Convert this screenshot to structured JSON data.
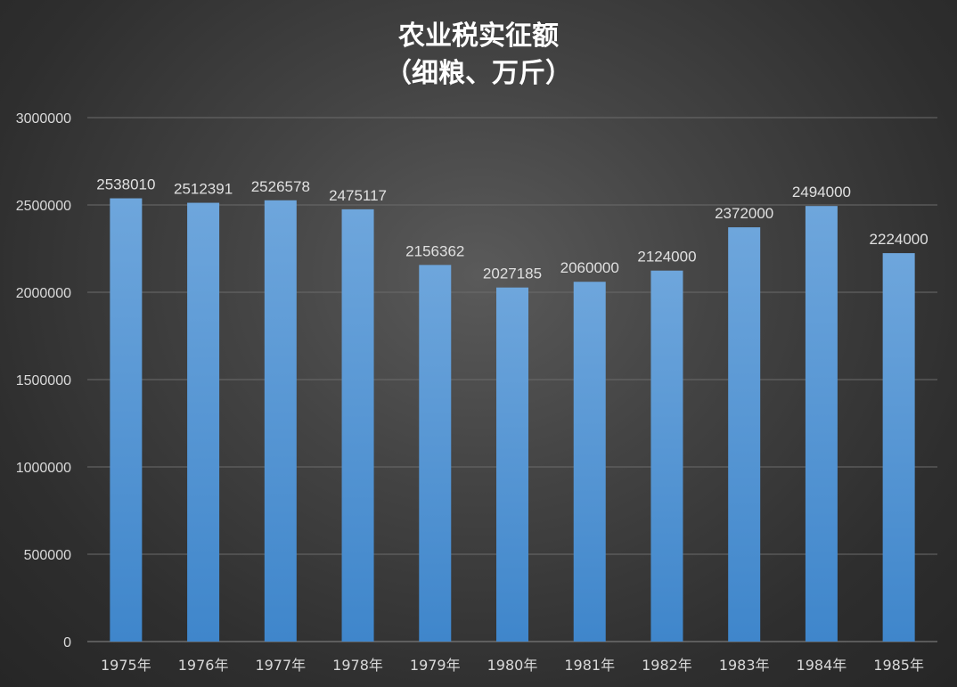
{
  "chart_data": {
    "type": "bar",
    "title": "农业税实征额",
    "subtitle": "（细粮、万斤）",
    "xlabel": "",
    "ylabel": "",
    "categories": [
      "1975年",
      "1976年",
      "1977年",
      "1978年",
      "1979年",
      "1980年",
      "1981年",
      "1982年",
      "1983年",
      "1984年",
      "1985年"
    ],
    "values": [
      2538010,
      2512391,
      2526578,
      2475117,
      2156362,
      2027185,
      2060000,
      2124000,
      2372000,
      2494000,
      2224000
    ],
    "data_labels": [
      "2538010",
      "2512391",
      "2526578",
      "2475117",
      "2156362",
      "2027185",
      "2060000",
      "2124000",
      "2372000",
      "2494000",
      "2224000"
    ],
    "ylim": [
      0,
      3000000
    ],
    "yticks": [
      0,
      500000,
      1000000,
      1500000,
      2000000,
      2500000,
      3000000
    ],
    "ytick_labels": [
      "0",
      "500000",
      "1000000",
      "1500000",
      "2000000",
      "2500000",
      "3000000"
    ],
    "grid": true,
    "legend": "none",
    "colors": {
      "bar_top": "#6ea6dc",
      "bar_bottom": "#3f86cb",
      "background_center": "#5a5a5a",
      "background_edge": "#262626",
      "text": "#d9d9d9"
    }
  }
}
